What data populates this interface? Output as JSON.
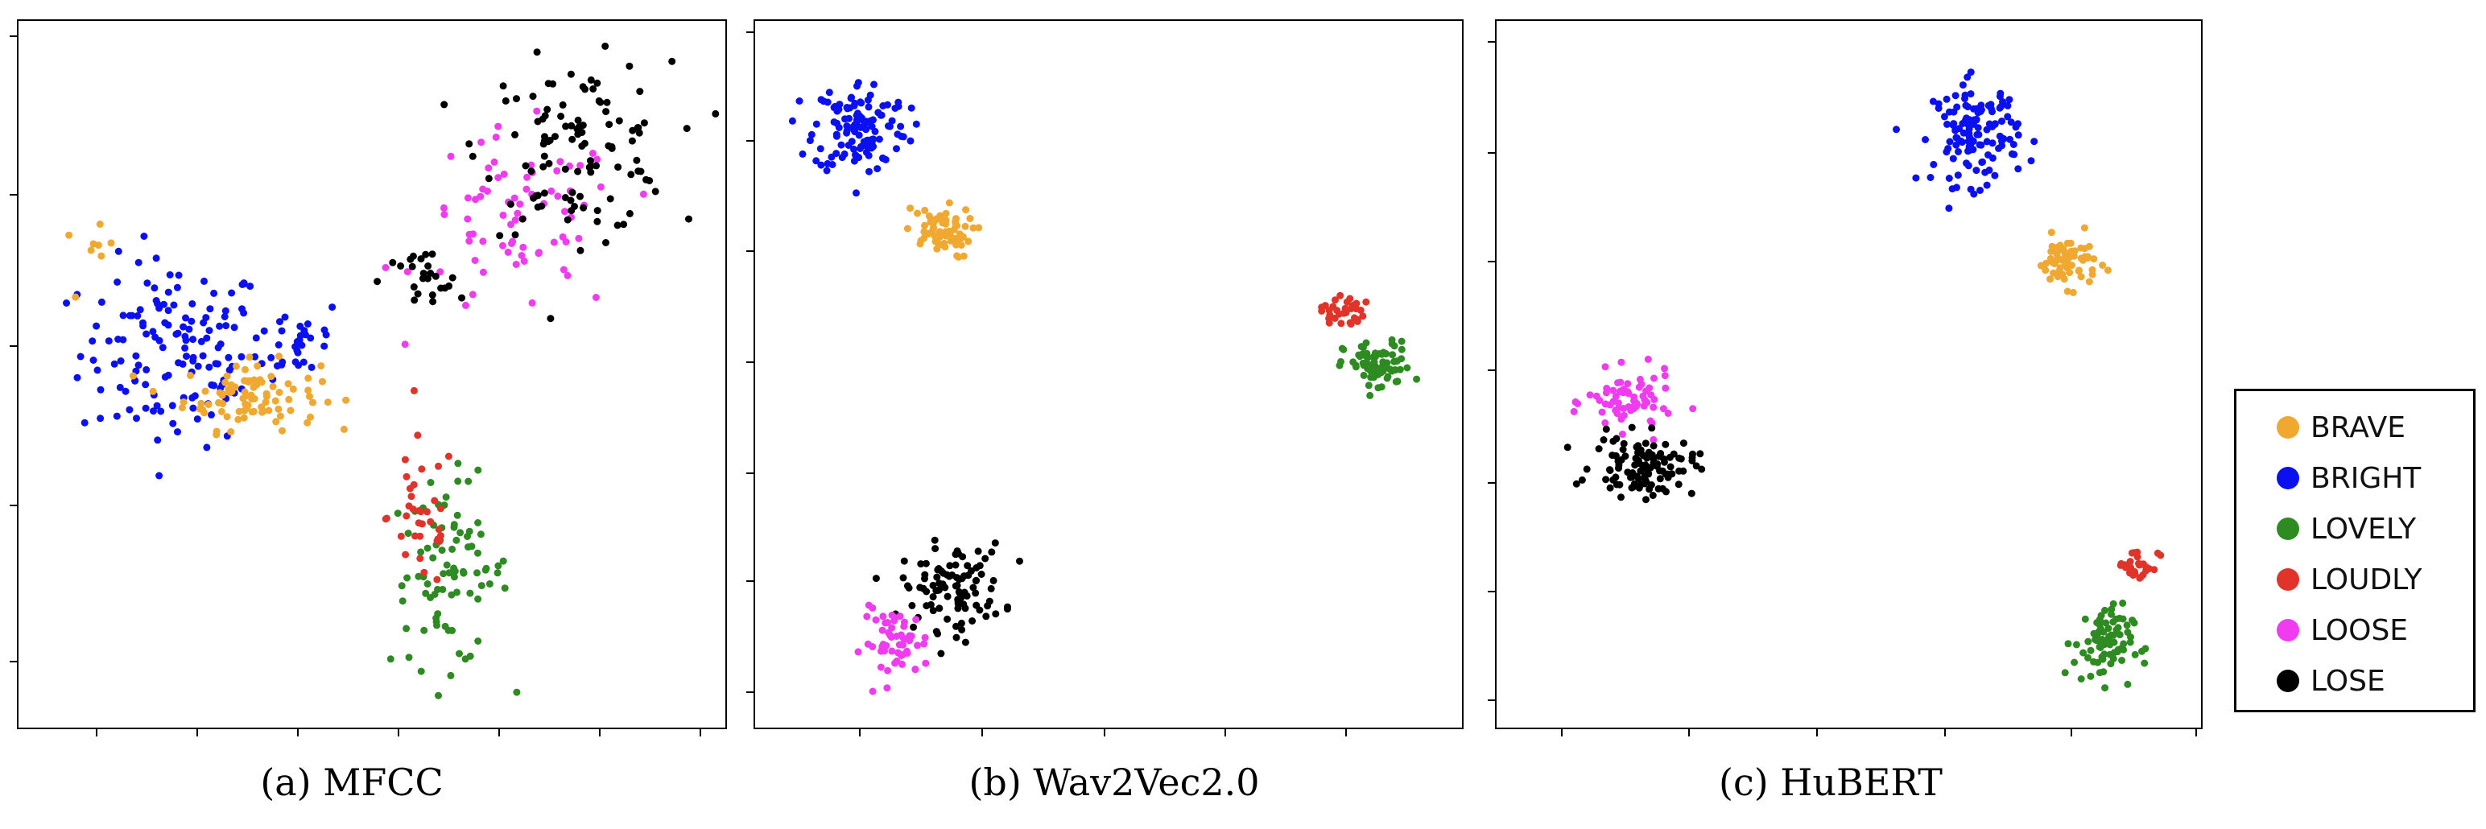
{
  "figure": {
    "captions": [
      "(a) MFCC",
      "(b) Wav2Vec2.0",
      "(c) HuBERT"
    ]
  },
  "legend": [
    {
      "label": "BRAVE",
      "color": "#f0a830"
    },
    {
      "label": "BRIGHT",
      "color": "#0a10f0"
    },
    {
      "label": "LOVELY",
      "color": "#2e8b22"
    },
    {
      "label": "LOUDLY",
      "color": "#e0342a"
    },
    {
      "label": "LOOSE",
      "color": "#f03cf0"
    },
    {
      "label": "LOSE",
      "color": "#000000"
    }
  ],
  "chart_data": [
    {
      "type": "scatter",
      "title": "(a) MFCC",
      "xlabel": "",
      "ylabel": "",
      "xlim": [
        0,
        100
      ],
      "ylim": [
        0,
        100
      ],
      "grid": false,
      "clusters": [
        {
          "name": "BRIGHT",
          "n": 140,
          "cx": 22,
          "cy": 53,
          "sx": 11,
          "sy": 11
        },
        {
          "name": "BRIGHT",
          "n": 30,
          "cx": 40,
          "cy": 55,
          "sx": 5,
          "sy": 5
        },
        {
          "name": "BRAVE",
          "n": 90,
          "cx": 33,
          "cy": 47,
          "sx": 8,
          "sy": 4
        },
        {
          "name": "BRAVE",
          "n": 8,
          "cx": 10,
          "cy": 67,
          "sx": 3,
          "sy": 3
        },
        {
          "name": "LOVELY",
          "n": 85,
          "cx": 61,
          "cy": 22,
          "sx": 7,
          "sy": 11
        },
        {
          "name": "LOUDLY",
          "n": 35,
          "cx": 57,
          "cy": 30,
          "sx": 4,
          "sy": 9
        },
        {
          "name": "LOOSE",
          "n": 75,
          "cx": 71,
          "cy": 71,
          "sx": 12,
          "sy": 11
        },
        {
          "name": "LOSE",
          "n": 110,
          "cx": 79,
          "cy": 82,
          "sx": 11,
          "sy": 10
        },
        {
          "name": "LOSE",
          "n": 25,
          "cx": 57,
          "cy": 63,
          "sx": 5,
          "sy": 4
        }
      ]
    },
    {
      "type": "scatter",
      "title": "(b) Wav2Vec2.0",
      "xlabel": "",
      "ylabel": "",
      "xlim": [
        0,
        100
      ],
      "ylim": [
        0,
        100
      ],
      "grid": false,
      "clusters": [
        {
          "name": "BRIGHT",
          "n": 130,
          "cx": 15,
          "cy": 85,
          "sx": 5.5,
          "sy": 5.5
        },
        {
          "name": "BRAVE",
          "n": 65,
          "cx": 26,
          "cy": 70,
          "sx": 4,
          "sy": 3
        },
        {
          "name": "LOUDLY",
          "n": 35,
          "cx": 83,
          "cy": 59,
          "sx": 2.5,
          "sy": 2
        },
        {
          "name": "LOVELY",
          "n": 80,
          "cx": 88,
          "cy": 51,
          "sx": 4,
          "sy": 3
        },
        {
          "name": "LOSE",
          "n": 100,
          "cx": 28,
          "cy": 20,
          "sx": 6,
          "sy": 5
        },
        {
          "name": "LOOSE",
          "n": 55,
          "cx": 20,
          "cy": 12,
          "sx": 4,
          "sy": 4
        }
      ]
    },
    {
      "type": "scatter",
      "title": "(c) HuBERT",
      "xlabel": "",
      "ylabel": "",
      "xlim": [
        0,
        100
      ],
      "ylim": [
        0,
        100
      ],
      "grid": false,
      "clusters": [
        {
          "name": "BRIGHT",
          "n": 130,
          "cx": 68,
          "cy": 84,
          "sx": 5,
          "sy": 6
        },
        {
          "name": "BRAVE",
          "n": 65,
          "cx": 81,
          "cy": 66,
          "sx": 3.5,
          "sy": 3
        },
        {
          "name": "LOOSE",
          "n": 70,
          "cx": 19,
          "cy": 46,
          "sx": 5,
          "sy": 3.5
        },
        {
          "name": "LOSE",
          "n": 110,
          "cx": 21,
          "cy": 37,
          "sx": 6,
          "sy": 3.5
        },
        {
          "name": "LOUDLY",
          "n": 30,
          "cx": 91,
          "cy": 23,
          "sx": 2.5,
          "sy": 2
        },
        {
          "name": "LOVELY",
          "n": 80,
          "cx": 86,
          "cy": 12,
          "sx": 3.5,
          "sy": 4.5
        }
      ]
    }
  ]
}
